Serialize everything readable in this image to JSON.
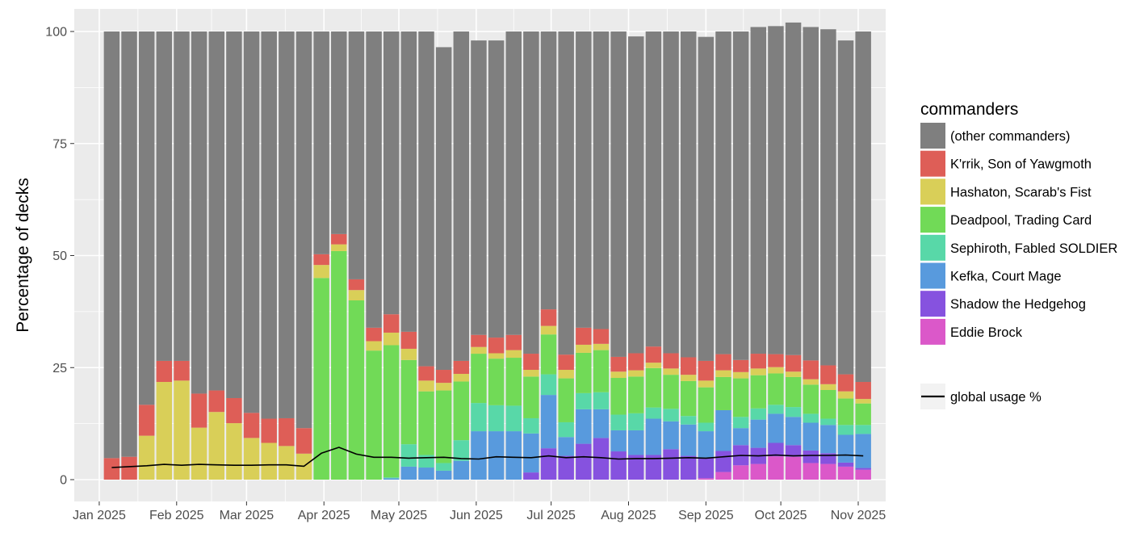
{
  "chart_data": {
    "type": "bar",
    "stacked": true,
    "title": "",
    "xlabel": "",
    "ylabel": "Percentage of decks",
    "ylim": [
      0,
      100
    ],
    "y_ticks": [
      0,
      25,
      50,
      75,
      100
    ],
    "x_tick_labels": [
      "Jan 2025",
      "Feb 2025",
      "Mar 2025",
      "Apr 2025",
      "May 2025",
      "Jun 2025",
      "Jul 2025",
      "Aug 2025",
      "Sep 2025",
      "Oct 2025",
      "Nov 2025"
    ],
    "x_tick_dates": [
      "2025-01-01",
      "2025-02-01",
      "2025-03-01",
      "2025-04-01",
      "2025-05-01",
      "2025-06-01",
      "2025-07-01",
      "2025-08-01",
      "2025-09-01",
      "2025-10-01",
      "2025-11-01"
    ],
    "xlim": [
      "2024-12-22",
      "2025-11-12"
    ],
    "grid": true,
    "legend_title": "commanders",
    "legend_position": "right",
    "x": [
      "2025-01-06",
      "2025-01-13",
      "2025-01-20",
      "2025-01-27",
      "2025-02-03",
      "2025-02-10",
      "2025-02-17",
      "2025-02-24",
      "2025-03-03",
      "2025-03-10",
      "2025-03-17",
      "2025-03-24",
      "2025-03-31",
      "2025-04-07",
      "2025-04-14",
      "2025-04-21",
      "2025-04-28",
      "2025-05-05",
      "2025-05-12",
      "2025-05-19",
      "2025-05-26",
      "2025-06-02",
      "2025-06-09",
      "2025-06-16",
      "2025-06-23",
      "2025-06-30",
      "2025-07-07",
      "2025-07-14",
      "2025-07-21",
      "2025-07-28",
      "2025-08-04",
      "2025-08-11",
      "2025-08-18",
      "2025-08-25",
      "2025-09-01",
      "2025-09-08",
      "2025-09-15",
      "2025-09-22",
      "2025-09-29",
      "2025-10-06",
      "2025-10-13",
      "2025-10-20",
      "2025-10-27",
      "2025-11-03"
    ],
    "series": [
      {
        "name": "Eddie Brock",
        "color": "#DB58C9",
        "values": [
          0,
          0,
          0,
          0,
          0,
          0,
          0,
          0,
          0,
          0,
          0,
          0,
          0,
          0,
          0,
          0,
          0,
          0,
          0,
          0,
          0,
          0,
          0,
          0,
          0,
          0,
          0,
          0,
          0,
          0,
          0,
          0,
          0,
          0,
          0.3,
          1.7,
          3.2,
          3.5,
          5.2,
          5.1,
          3.7,
          3.5,
          2.9,
          2.2
        ]
      },
      {
        "name": "Shadow the Hedgehog",
        "color": "#8652DF",
        "values": [
          0,
          0,
          0,
          0,
          0,
          0,
          0,
          0,
          0,
          0,
          0,
          0,
          0,
          0,
          0,
          0,
          0,
          0,
          0,
          0,
          0,
          0,
          0,
          0,
          1.6,
          7,
          5.3,
          8,
          9.3,
          6.3,
          5.5,
          5.5,
          6.8,
          5.3,
          4.6,
          4.7,
          4.5,
          3.6,
          3,
          2.6,
          2.8,
          2.4,
          0.9,
          0.4
        ]
      },
      {
        "name": "Kefka, Court Mage",
        "color": "#589ADD",
        "values": [
          0,
          0,
          0,
          0,
          0,
          0,
          0,
          0,
          0,
          0,
          0,
          0,
          0,
          0,
          0,
          0,
          0.3,
          2.9,
          2.7,
          2,
          4.2,
          10.8,
          10.8,
          10.8,
          8.7,
          11.9,
          4.2,
          7.7,
          6.4,
          4.7,
          5.5,
          8.1,
          6.2,
          7,
          5.9,
          9.1,
          3.8,
          6.3,
          6.5,
          6.3,
          6.2,
          6.3,
          6.2,
          7.6
        ]
      },
      {
        "name": "Sephiroth, Fabled SOLDIER",
        "color": "#58D8A8",
        "values": [
          0,
          0,
          0,
          0,
          0,
          0,
          0,
          0,
          0,
          0,
          0,
          0,
          0,
          0,
          0,
          0,
          0.2,
          5,
          2.8,
          1.7,
          4.6,
          6.3,
          5.8,
          5.7,
          3.4,
          4.6,
          3.3,
          3.6,
          3.8,
          3.5,
          3.8,
          2.5,
          2.8,
          1.9,
          1.9,
          0,
          2.5,
          2.5,
          2,
          2.2,
          2,
          1.4,
          2.2,
          2
        ]
      },
      {
        "name": "Deadpool, Trading Card",
        "color": "#71DA57",
        "values": [
          0,
          0,
          0,
          0,
          0,
          0,
          0,
          0,
          0,
          0,
          0,
          0,
          45,
          51,
          40,
          28.8,
          29.5,
          18.8,
          14.2,
          16.2,
          13.1,
          11,
          10.4,
          10.7,
          9.3,
          8.9,
          9.8,
          9,
          9.4,
          8.2,
          8.2,
          8.8,
          7.6,
          7.8,
          7.9,
          7.4,
          8.6,
          7.4,
          7,
          6.7,
          6.5,
          6.4,
          5.9,
          4.8
        ]
      },
      {
        "name": "Hashaton, Scarab's Fist",
        "color": "#D9CF58",
        "values": [
          0,
          0,
          9.8,
          21.8,
          22.1,
          11.6,
          15.1,
          12.6,
          9.3,
          8.2,
          7.5,
          5.8,
          2.9,
          1.5,
          2.3,
          2.1,
          2.8,
          2.5,
          2.4,
          1.7,
          1.7,
          1.5,
          1.2,
          1.7,
          1.5,
          1.9,
          1.9,
          1.8,
          1.4,
          1.4,
          1.4,
          1.2,
          1.4,
          1.4,
          1.5,
          1.5,
          1.4,
          1.5,
          1.4,
          1.2,
          1.2,
          1.3,
          1.6,
          1
        ]
      },
      {
        "name": "K'rrik, Son of Yawgmoth",
        "color": "#DE5E57",
        "values": [
          4.8,
          5.1,
          6.9,
          4.7,
          4.4,
          7.6,
          4.8,
          5.6,
          5.6,
          5.4,
          6.2,
          5.7,
          2.4,
          2.3,
          2.4,
          3,
          4.1,
          3.8,
          3.2,
          2.9,
          2.9,
          2.7,
          3.5,
          3.4,
          3.6,
          3.7,
          3.4,
          3.8,
          3.3,
          3.3,
          3.8,
          3.6,
          3.4,
          3.9,
          4.4,
          3.6,
          2.7,
          3.3,
          2.9,
          3.7,
          4.2,
          4.2,
          3.8,
          3.8
        ]
      },
      {
        "name": "(other commanders)",
        "color": "#7F7F7F",
        "values": [
          95.2,
          94.9,
          83.3,
          73.5,
          73.5,
          80.8,
          80.1,
          81.8,
          85.1,
          86.4,
          86.3,
          88.5,
          49.7,
          45.2,
          55.3,
          66.1,
          63.1,
          67,
          74.7,
          72,
          73.5,
          65.7,
          66.3,
          67.7,
          71.9,
          62,
          72.1,
          66.1,
          66.4,
          72.6,
          70.7,
          70.3,
          71.8,
          72.7,
          72.3,
          72,
          73.3,
          72.9,
          73.2,
          74.2,
          74.4,
          75,
          74.5,
          78.2
        ]
      }
    ],
    "line": {
      "name": "global usage %",
      "color": "#000000",
      "values": [
        2.7,
        2.9,
        3.1,
        3.4,
        3.2,
        3.4,
        3.3,
        3.2,
        3.2,
        3.3,
        3.3,
        3,
        5.9,
        7.2,
        5.7,
        5,
        5,
        4.8,
        4.9,
        5,
        4.7,
        4.6,
        5.1,
        5,
        4.9,
        5.3,
        4.9,
        5.1,
        4.9,
        4.6,
        4.7,
        4.7,
        4.8,
        4.9,
        4.8,
        5.1,
        5.4,
        5.3,
        5.5,
        5.3,
        5.4,
        5.4,
        5.5,
        5.3
      ]
    },
    "legend_order": [
      "(other commanders)",
      "K'rrik, Son of Yawgmoth",
      "Hashaton, Scarab's Fist",
      "Deadpool, Trading Card",
      "Sephiroth, Fabled SOLDIER",
      "Kefka, Court Mage",
      "Shadow the Hedgehog",
      "Eddie Brock"
    ]
  }
}
